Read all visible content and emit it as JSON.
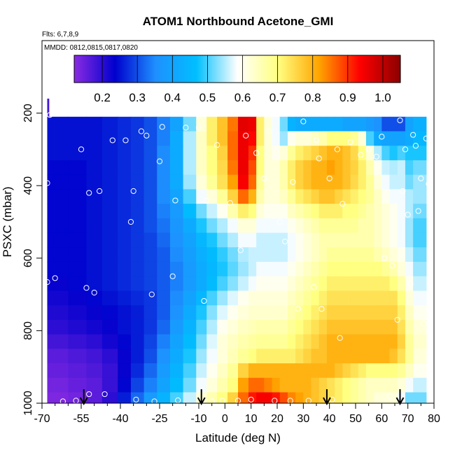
{
  "chart_data": {
    "type": "heatmap",
    "title": "ATOM1 Northbound Acetone_GMI",
    "flights_label": "Flts: 6,7,8,9",
    "dates_label": "MMDD: 0812,0815,0817,0820",
    "xlabel": "Latitude (deg N)",
    "ylabel": "PSXC (mbar)",
    "xlim": [
      -70,
      80
    ],
    "ylim": [
      1000,
      0
    ],
    "x_ticks": [
      -70,
      -55,
      -40,
      -25,
      -10,
      0,
      10,
      20,
      30,
      40,
      50,
      60,
      70,
      80
    ],
    "x_minor_ticks": [
      -65,
      -60,
      -50,
      -45,
      -35,
      -30,
      -20,
      -15,
      -5,
      5,
      15,
      25,
      35,
      45,
      55,
      65,
      75
    ],
    "y_ticks": [
      200,
      400,
      600,
      800,
      1000
    ],
    "colorbar": {
      "min": 0.12,
      "max": 1.05,
      "ticks": [
        0.2,
        0.3,
        0.4,
        0.5,
        0.6,
        0.7,
        0.8,
        0.9,
        1.0
      ],
      "tick_labels": [
        "0.2",
        "0.3",
        "0.4",
        "0.5",
        "0.6",
        "0.7",
        "0.8",
        "0.9",
        "1.0"
      ],
      "colors": [
        "#8a2be2",
        "#0000cd",
        "#1e90ff",
        "#00bfff",
        "#ffffff",
        "#ffff80",
        "#ffa500",
        "#ff0000",
        "#8b0000"
      ]
    },
    "pressure_levels": [
      210,
      250,
      290,
      330,
      370,
      410,
      450,
      490,
      530,
      570,
      610,
      650,
      690,
      730,
      770,
      810,
      850,
      890,
      930,
      970,
      1000
    ],
    "column_edges_lat": [
      -68,
      -60,
      -53,
      -47,
      -41,
      -36,
      -31,
      -26,
      -21,
      -16,
      -11,
      -7,
      -3,
      1,
      5,
      9,
      12,
      15,
      18,
      21,
      24,
      27,
      30,
      33,
      36,
      39,
      42,
      45,
      48,
      51,
      54,
      57,
      60,
      63,
      66,
      69,
      72,
      77
    ],
    "rows": [
      [
        0.25,
        0.25,
        0.25,
        0.26,
        0.27,
        0.28,
        0.3,
        0.34,
        0.4,
        0.52,
        0.62,
        0.72,
        0.78,
        0.85,
        0.96,
        0.95,
        0.72,
        0.62,
        0.58,
        0.52,
        0.44,
        0.42,
        0.42,
        0.42,
        0.42,
        0.42,
        0.42,
        0.4,
        0.4,
        0.4,
        0.38,
        0.36,
        0.3,
        0.3,
        0.3,
        0.4,
        0.43
      ],
      [
        0.25,
        0.25,
        0.25,
        0.26,
        0.27,
        0.28,
        0.3,
        0.34,
        0.42,
        0.55,
        0.64,
        0.72,
        0.78,
        0.86,
        0.95,
        0.93,
        0.72,
        0.62,
        0.58,
        0.54,
        0.6,
        0.62,
        0.62,
        0.64,
        0.66,
        0.7,
        0.7,
        0.7,
        0.68,
        0.62,
        0.5,
        0.42,
        0.4,
        0.4,
        0.4,
        0.42,
        0.45
      ],
      [
        0.25,
        0.25,
        0.25,
        0.26,
        0.27,
        0.28,
        0.3,
        0.35,
        0.42,
        0.55,
        0.64,
        0.7,
        0.76,
        0.86,
        0.95,
        0.9,
        0.7,
        0.62,
        0.6,
        0.62,
        0.68,
        0.72,
        0.74,
        0.76,
        0.78,
        0.8,
        0.8,
        0.78,
        0.75,
        0.7,
        0.62,
        0.55,
        0.5,
        0.48,
        0.5,
        0.48,
        0.48
      ],
      [
        0.24,
        0.24,
        0.25,
        0.26,
        0.27,
        0.28,
        0.3,
        0.35,
        0.42,
        0.55,
        0.64,
        0.7,
        0.75,
        0.85,
        0.95,
        0.88,
        0.7,
        0.62,
        0.62,
        0.66,
        0.72,
        0.76,
        0.78,
        0.8,
        0.8,
        0.82,
        0.8,
        0.78,
        0.76,
        0.72,
        0.66,
        0.6,
        0.56,
        0.55,
        0.56,
        0.5,
        0.52
      ],
      [
        0.24,
        0.24,
        0.25,
        0.26,
        0.27,
        0.28,
        0.3,
        0.35,
        0.42,
        0.54,
        0.62,
        0.68,
        0.74,
        0.82,
        0.94,
        0.86,
        0.68,
        0.62,
        0.62,
        0.66,
        0.72,
        0.76,
        0.78,
        0.8,
        0.8,
        0.8,
        0.8,
        0.78,
        0.75,
        0.72,
        0.68,
        0.62,
        0.58,
        0.56,
        0.56,
        0.52,
        0.54
      ],
      [
        0.24,
        0.24,
        0.25,
        0.26,
        0.27,
        0.28,
        0.3,
        0.35,
        0.4,
        0.5,
        0.58,
        0.62,
        0.68,
        0.76,
        0.86,
        0.8,
        0.66,
        0.62,
        0.62,
        0.64,
        0.68,
        0.72,
        0.74,
        0.76,
        0.78,
        0.78,
        0.76,
        0.74,
        0.72,
        0.7,
        0.68,
        0.64,
        0.6,
        0.58,
        0.58,
        0.55,
        0.54
      ],
      [
        0.24,
        0.24,
        0.25,
        0.26,
        0.27,
        0.28,
        0.3,
        0.34,
        0.38,
        0.46,
        0.52,
        0.56,
        0.6,
        0.66,
        0.72,
        0.7,
        0.62,
        0.6,
        0.6,
        0.6,
        0.64,
        0.66,
        0.68,
        0.7,
        0.72,
        0.72,
        0.72,
        0.7,
        0.7,
        0.68,
        0.66,
        0.64,
        0.62,
        0.6,
        0.58,
        0.55,
        0.52
      ],
      [
        0.24,
        0.24,
        0.25,
        0.26,
        0.27,
        0.28,
        0.3,
        0.33,
        0.37,
        0.42,
        0.48,
        0.52,
        0.55,
        0.58,
        0.62,
        0.62,
        0.58,
        0.58,
        0.58,
        0.58,
        0.6,
        0.62,
        0.64,
        0.66,
        0.68,
        0.68,
        0.68,
        0.68,
        0.68,
        0.66,
        0.66,
        0.64,
        0.62,
        0.6,
        0.58,
        0.54,
        0.5
      ],
      [
        0.24,
        0.24,
        0.25,
        0.26,
        0.27,
        0.28,
        0.29,
        0.32,
        0.36,
        0.4,
        0.45,
        0.48,
        0.52,
        0.55,
        0.58,
        0.58,
        0.56,
        0.56,
        0.56,
        0.56,
        0.58,
        0.6,
        0.62,
        0.64,
        0.66,
        0.66,
        0.66,
        0.66,
        0.66,
        0.66,
        0.66,
        0.64,
        0.62,
        0.6,
        0.58,
        0.54,
        0.5
      ],
      [
        0.24,
        0.24,
        0.25,
        0.26,
        0.27,
        0.28,
        0.29,
        0.31,
        0.35,
        0.39,
        0.43,
        0.46,
        0.49,
        0.52,
        0.55,
        0.56,
        0.56,
        0.56,
        0.56,
        0.56,
        0.58,
        0.6,
        0.62,
        0.64,
        0.66,
        0.68,
        0.68,
        0.68,
        0.68,
        0.68,
        0.68,
        0.66,
        0.64,
        0.62,
        0.6,
        0.56,
        0.52
      ],
      [
        0.24,
        0.24,
        0.25,
        0.26,
        0.27,
        0.28,
        0.29,
        0.31,
        0.34,
        0.38,
        0.42,
        0.45,
        0.48,
        0.51,
        0.54,
        0.56,
        0.58,
        0.58,
        0.58,
        0.58,
        0.6,
        0.62,
        0.64,
        0.66,
        0.68,
        0.7,
        0.7,
        0.7,
        0.7,
        0.7,
        0.7,
        0.7,
        0.68,
        0.66,
        0.62,
        0.58,
        0.54
      ],
      [
        0.23,
        0.24,
        0.25,
        0.26,
        0.27,
        0.28,
        0.29,
        0.31,
        0.34,
        0.38,
        0.42,
        0.46,
        0.5,
        0.53,
        0.56,
        0.58,
        0.6,
        0.6,
        0.6,
        0.6,
        0.62,
        0.64,
        0.66,
        0.68,
        0.7,
        0.72,
        0.72,
        0.72,
        0.72,
        0.72,
        0.72,
        0.72,
        0.72,
        0.7,
        0.66,
        0.6,
        0.56
      ],
      [
        0.22,
        0.23,
        0.24,
        0.25,
        0.26,
        0.27,
        0.28,
        0.31,
        0.35,
        0.4,
        0.45,
        0.5,
        0.54,
        0.57,
        0.6,
        0.62,
        0.62,
        0.62,
        0.62,
        0.62,
        0.64,
        0.66,
        0.68,
        0.7,
        0.72,
        0.74,
        0.74,
        0.74,
        0.74,
        0.74,
        0.74,
        0.74,
        0.74,
        0.74,
        0.7,
        0.62,
        0.58
      ],
      [
        0.21,
        0.22,
        0.23,
        0.24,
        0.25,
        0.26,
        0.28,
        0.31,
        0.36,
        0.42,
        0.48,
        0.53,
        0.57,
        0.6,
        0.62,
        0.63,
        0.63,
        0.63,
        0.63,
        0.63,
        0.66,
        0.68,
        0.7,
        0.72,
        0.74,
        0.76,
        0.76,
        0.76,
        0.76,
        0.76,
        0.76,
        0.76,
        0.76,
        0.76,
        0.72,
        0.64,
        0.6
      ],
      [
        0.2,
        0.21,
        0.22,
        0.23,
        0.25,
        0.26,
        0.28,
        0.32,
        0.38,
        0.44,
        0.5,
        0.55,
        0.6,
        0.62,
        0.64,
        0.65,
        0.66,
        0.66,
        0.66,
        0.66,
        0.68,
        0.7,
        0.72,
        0.74,
        0.76,
        0.78,
        0.78,
        0.78,
        0.78,
        0.78,
        0.78,
        0.78,
        0.78,
        0.78,
        0.74,
        0.66,
        0.62
      ],
      [
        0.18,
        0.19,
        0.2,
        0.22,
        0.24,
        0.26,
        0.29,
        0.34,
        0.4,
        0.46,
        0.52,
        0.57,
        0.62,
        0.64,
        0.66,
        0.67,
        0.68,
        0.68,
        0.68,
        0.68,
        0.7,
        0.72,
        0.74,
        0.76,
        0.78,
        0.8,
        0.8,
        0.8,
        0.8,
        0.8,
        0.8,
        0.8,
        0.8,
        0.8,
        0.76,
        0.68,
        0.63
      ],
      [
        0.16,
        0.17,
        0.18,
        0.2,
        0.23,
        0.26,
        0.3,
        0.36,
        0.42,
        0.48,
        0.54,
        0.58,
        0.62,
        0.65,
        0.68,
        0.7,
        0.72,
        0.72,
        0.72,
        0.72,
        0.72,
        0.74,
        0.76,
        0.78,
        0.78,
        0.8,
        0.8,
        0.8,
        0.8,
        0.8,
        0.8,
        0.8,
        0.8,
        0.78,
        0.74,
        0.68,
        0.62
      ],
      [
        0.15,
        0.16,
        0.17,
        0.19,
        0.23,
        0.27,
        0.32,
        0.38,
        0.44,
        0.5,
        0.56,
        0.6,
        0.64,
        0.68,
        0.76,
        0.8,
        0.8,
        0.8,
        0.8,
        0.8,
        0.8,
        0.8,
        0.8,
        0.8,
        0.8,
        0.8,
        0.78,
        0.76,
        0.74,
        0.72,
        0.7,
        0.7,
        0.7,
        0.7,
        0.68,
        0.64,
        0.6
      ],
      [
        0.14,
        0.15,
        0.16,
        0.19,
        0.24,
        0.29,
        0.34,
        0.4,
        0.46,
        0.52,
        0.58,
        0.62,
        0.66,
        0.7,
        0.82,
        0.86,
        0.86,
        0.84,
        0.82,
        0.8,
        0.8,
        0.8,
        0.8,
        0.78,
        0.76,
        0.74,
        0.72,
        0.7,
        0.68,
        0.66,
        0.64,
        0.64,
        0.64,
        0.64,
        0.62,
        0.58,
        0.56
      ],
      [
        0.13,
        0.14,
        0.16,
        0.2,
        0.26,
        0.32,
        0.38,
        0.44,
        0.5,
        0.56,
        0.62,
        0.66,
        0.7,
        0.76,
        0.86,
        0.92,
        0.94,
        0.94,
        0.92,
        0.88,
        0.84,
        0.82,
        0.8,
        0.78,
        0.76,
        0.74,
        0.72,
        0.7,
        0.68,
        0.66,
        0.64,
        0.62,
        0.62,
        0.62,
        0.58,
        0.52,
        0.52
      ],
      [
        0.13,
        0.14,
        0.16,
        0.2,
        0.26,
        0.32,
        0.38,
        0.44,
        0.5,
        0.56,
        0.62,
        0.66,
        0.7,
        0.78,
        0.88,
        0.92,
        0.95,
        0.95,
        0.93,
        0.88,
        0.84,
        0.82,
        0.8,
        0.78,
        0.76,
        0.74,
        0.72,
        0.7,
        0.68,
        0.66,
        0.64,
        0.62,
        0.6,
        0.6,
        0.56,
        0.5,
        0.5
      ]
    ],
    "top_strip": {
      "lat": [
        -68,
        -67.5
      ],
      "pressure": [
        160,
        210
      ],
      "value": 0.18
    },
    "observations": [
      [
        -67,
        205
      ],
      [
        -68,
        393
      ],
      [
        -68,
        666
      ],
      [
        -65,
        655
      ],
      [
        -62,
        995
      ],
      [
        -57,
        993
      ],
      [
        -55,
        300
      ],
      [
        -53,
        682
      ],
      [
        -52,
        420
      ],
      [
        -52,
        975
      ],
      [
        -50,
        695
      ],
      [
        -48,
        415
      ],
      [
        -46,
        975
      ],
      [
        -43,
        275
      ],
      [
        -38,
        275
      ],
      [
        -36,
        500
      ],
      [
        -35,
        415
      ],
      [
        -34,
        990
      ],
      [
        -32,
        250
      ],
      [
        -30,
        262
      ],
      [
        -28,
        700
      ],
      [
        -27,
        995
      ],
      [
        -25,
        333
      ],
      [
        -24,
        238
      ],
      [
        -20,
        650
      ],
      [
        -19,
        441
      ],
      [
        -18,
        992
      ],
      [
        -15,
        240
      ],
      [
        -10,
        240
      ],
      [
        -8,
        718
      ],
      [
        -7,
        442
      ],
      [
        -5,
        995
      ],
      [
        -3,
        288
      ],
      [
        -2,
        780
      ],
      [
        -1,
        993
      ],
      [
        2,
        448
      ],
      [
        5,
        993
      ],
      [
        6,
        578
      ],
      [
        8,
        262
      ],
      [
        10,
        990
      ],
      [
        12,
        310
      ],
      [
        15,
        380
      ],
      [
        17,
        250
      ],
      [
        19,
        993
      ],
      [
        21,
        500
      ],
      [
        23,
        554
      ],
      [
        25,
        993
      ],
      [
        26,
        390
      ],
      [
        28,
        740
      ],
      [
        30,
        223
      ],
      [
        32,
        993
      ],
      [
        34,
        680
      ],
      [
        35,
        275
      ],
      [
        36,
        325
      ],
      [
        37,
        740
      ],
      [
        40,
        380
      ],
      [
        41,
        990
      ],
      [
        43,
        300
      ],
      [
        44,
        820
      ],
      [
        45,
        450
      ],
      [
        48,
        280
      ],
      [
        52,
        315
      ],
      [
        55,
        300
      ],
      [
        58,
        320
      ],
      [
        60,
        265
      ],
      [
        61,
        600
      ],
      [
        63,
        980
      ],
      [
        64,
        620
      ],
      [
        66,
        770
      ],
      [
        67,
        220
      ],
      [
        68,
        415
      ],
      [
        69,
        300
      ],
      [
        70,
        480
      ],
      [
        71,
        670
      ],
      [
        72,
        260
      ],
      [
        73,
        290
      ],
      [
        74,
        470
      ],
      [
        75,
        380
      ],
      [
        76,
        780
      ],
      [
        77,
        270
      ],
      [
        78,
        395
      ],
      [
        79,
        975
      ]
    ],
    "flight_markers_lat": [
      -54,
      -9,
      39,
      67
    ]
  }
}
